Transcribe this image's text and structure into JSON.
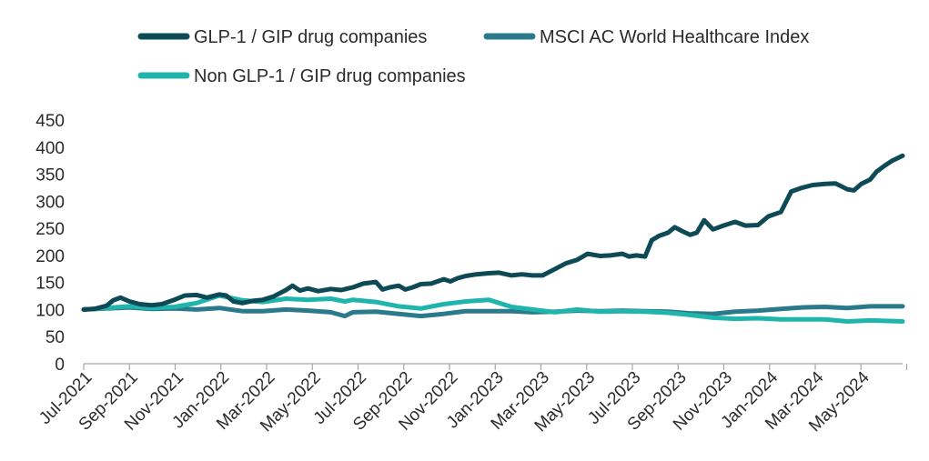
{
  "chart_data": {
    "type": "line",
    "title": "",
    "xlabel": "",
    "ylabel": "",
    "ylim": [
      0,
      450
    ],
    "y_ticks": [
      0,
      50,
      100,
      150,
      200,
      250,
      300,
      350,
      400,
      450
    ],
    "x_range": [
      "2021-07-01",
      "2024-07-15"
    ],
    "x_ticks": [
      "Jul-2021",
      "Sep-2021",
      "Nov-2021",
      "Jan-2022",
      "Mar-2022",
      "May-2022",
      "Jul-2022",
      "Sep-2022",
      "Nov-2022",
      "Jan-2023",
      "Mar-2023",
      "May-2023",
      "Jul-2023",
      "Sep-2023",
      "Nov-2023",
      "Jan-2024",
      "Mar-2024",
      "May-2024"
    ],
    "grid": false,
    "legend_position": "top",
    "series": [
      {
        "name": "GLP-1 / GIP drug companies",
        "color": "#0d4a55",
        "points": [
          [
            "2021-07-01",
            100
          ],
          [
            "2021-07-15",
            101
          ],
          [
            "2021-08-01",
            107
          ],
          [
            "2021-08-10",
            117
          ],
          [
            "2021-08-20",
            122
          ],
          [
            "2021-09-01",
            115
          ],
          [
            "2021-09-15",
            110
          ],
          [
            "2021-10-01",
            108
          ],
          [
            "2021-10-15",
            110
          ],
          [
            "2021-11-01",
            118
          ],
          [
            "2021-11-15",
            126
          ],
          [
            "2021-12-01",
            127
          ],
          [
            "2021-12-15",
            122
          ],
          [
            "2022-01-01",
            128
          ],
          [
            "2022-01-10",
            126
          ],
          [
            "2022-01-20",
            115
          ],
          [
            "2022-02-01",
            112
          ],
          [
            "2022-02-15",
            116
          ],
          [
            "2022-03-01",
            118
          ],
          [
            "2022-03-15",
            124
          ],
          [
            "2022-04-01",
            136
          ],
          [
            "2022-04-10",
            144
          ],
          [
            "2022-04-20",
            135
          ],
          [
            "2022-05-01",
            139
          ],
          [
            "2022-05-15",
            134
          ],
          [
            "2022-06-01",
            138
          ],
          [
            "2022-06-15",
            136
          ],
          [
            "2022-07-01",
            141
          ],
          [
            "2022-07-15",
            148
          ],
          [
            "2022-08-01",
            151
          ],
          [
            "2022-08-10",
            137
          ],
          [
            "2022-08-20",
            141
          ],
          [
            "2022-09-01",
            144
          ],
          [
            "2022-09-10",
            137
          ],
          [
            "2022-09-20",
            141
          ],
          [
            "2022-10-01",
            147
          ],
          [
            "2022-10-15",
            148
          ],
          [
            "2022-11-01",
            156
          ],
          [
            "2022-11-10",
            152
          ],
          [
            "2022-11-20",
            158
          ],
          [
            "2022-12-01",
            162
          ],
          [
            "2022-12-15",
            165
          ],
          [
            "2023-01-01",
            167
          ],
          [
            "2023-01-15",
            168
          ],
          [
            "2023-02-01",
            163
          ],
          [
            "2023-02-15",
            165
          ],
          [
            "2023-03-01",
            163
          ],
          [
            "2023-03-15",
            163
          ],
          [
            "2023-04-01",
            175
          ],
          [
            "2023-04-15",
            185
          ],
          [
            "2023-05-01",
            192
          ],
          [
            "2023-05-15",
            203
          ],
          [
            "2023-06-01",
            199
          ],
          [
            "2023-06-15",
            200
          ],
          [
            "2023-07-01",
            203
          ],
          [
            "2023-07-10",
            198
          ],
          [
            "2023-07-20",
            200
          ],
          [
            "2023-08-01",
            198
          ],
          [
            "2023-08-10",
            228
          ],
          [
            "2023-08-20",
            236
          ],
          [
            "2023-09-01",
            242
          ],
          [
            "2023-09-10",
            252
          ],
          [
            "2023-09-20",
            245
          ],
          [
            "2023-10-01",
            238
          ],
          [
            "2023-10-10",
            242
          ],
          [
            "2023-10-20",
            265
          ],
          [
            "2023-11-01",
            248
          ],
          [
            "2023-11-15",
            255
          ],
          [
            "2023-12-01",
            262
          ],
          [
            "2023-12-15",
            255
          ],
          [
            "2024-01-01",
            256
          ],
          [
            "2024-01-15",
            272
          ],
          [
            "2024-02-01",
            280
          ],
          [
            "2024-02-15",
            318
          ],
          [
            "2024-03-01",
            325
          ],
          [
            "2024-03-15",
            330
          ],
          [
            "2024-04-01",
            332
          ],
          [
            "2024-04-15",
            333
          ],
          [
            "2024-05-01",
            322
          ],
          [
            "2024-05-10",
            320
          ],
          [
            "2024-05-20",
            332
          ],
          [
            "2024-06-01",
            340
          ],
          [
            "2024-06-10",
            355
          ],
          [
            "2024-06-20",
            365
          ],
          [
            "2024-07-01",
            375
          ],
          [
            "2024-07-15",
            384
          ]
        ]
      },
      {
        "name": "MSCI AC World Healthcare Index",
        "color": "#2a7a8c",
        "points": [
          [
            "2021-07-01",
            100
          ],
          [
            "2021-08-01",
            102
          ],
          [
            "2021-09-01",
            104
          ],
          [
            "2021-10-01",
            101
          ],
          [
            "2021-11-01",
            102
          ],
          [
            "2021-12-01",
            100
          ],
          [
            "2022-01-01",
            103
          ],
          [
            "2022-02-01",
            97
          ],
          [
            "2022-03-01",
            97
          ],
          [
            "2022-04-01",
            100
          ],
          [
            "2022-05-01",
            98
          ],
          [
            "2022-06-01",
            95
          ],
          [
            "2022-06-20",
            88
          ],
          [
            "2022-07-01",
            95
          ],
          [
            "2022-08-01",
            96
          ],
          [
            "2022-09-01",
            92
          ],
          [
            "2022-10-01",
            88
          ],
          [
            "2022-11-01",
            92
          ],
          [
            "2022-12-01",
            97
          ],
          [
            "2023-01-01",
            97
          ],
          [
            "2023-02-01",
            97
          ],
          [
            "2023-03-01",
            95
          ],
          [
            "2023-04-01",
            96
          ],
          [
            "2023-05-01",
            98
          ],
          [
            "2023-06-01",
            97
          ],
          [
            "2023-07-01",
            98
          ],
          [
            "2023-08-01",
            97
          ],
          [
            "2023-09-01",
            96
          ],
          [
            "2023-10-01",
            93
          ],
          [
            "2023-11-01",
            92
          ],
          [
            "2023-12-01",
            96
          ],
          [
            "2024-01-01",
            98
          ],
          [
            "2024-02-01",
            101
          ],
          [
            "2024-03-01",
            104
          ],
          [
            "2024-04-01",
            105
          ],
          [
            "2024-05-01",
            103
          ],
          [
            "2024-06-01",
            106
          ],
          [
            "2024-07-15",
            106
          ]
        ]
      },
      {
        "name": "Non GLP-1 / GIP drug companies",
        "color": "#1fb5ad",
        "points": [
          [
            "2021-07-01",
            100
          ],
          [
            "2021-08-01",
            103
          ],
          [
            "2021-09-01",
            106
          ],
          [
            "2021-10-01",
            103
          ],
          [
            "2021-11-01",
            105
          ],
          [
            "2021-12-01",
            112
          ],
          [
            "2022-01-01",
            126
          ],
          [
            "2022-02-01",
            117
          ],
          [
            "2022-03-01",
            114
          ],
          [
            "2022-04-01",
            120
          ],
          [
            "2022-05-01",
            118
          ],
          [
            "2022-06-01",
            120
          ],
          [
            "2022-06-20",
            115
          ],
          [
            "2022-07-01",
            118
          ],
          [
            "2022-08-01",
            114
          ],
          [
            "2022-09-01",
            106
          ],
          [
            "2022-10-01",
            102
          ],
          [
            "2022-11-01",
            110
          ],
          [
            "2022-12-01",
            115
          ],
          [
            "2023-01-01",
            118
          ],
          [
            "2023-02-01",
            105
          ],
          [
            "2023-03-01",
            100
          ],
          [
            "2023-04-01",
            95
          ],
          [
            "2023-05-01",
            100
          ],
          [
            "2023-06-01",
            96
          ],
          [
            "2023-07-01",
            97
          ],
          [
            "2023-08-01",
            96
          ],
          [
            "2023-09-01",
            94
          ],
          [
            "2023-10-01",
            90
          ],
          [
            "2023-11-01",
            85
          ],
          [
            "2023-12-01",
            83
          ],
          [
            "2024-01-01",
            84
          ],
          [
            "2024-02-01",
            82
          ],
          [
            "2024-03-01",
            82
          ],
          [
            "2024-04-01",
            82
          ],
          [
            "2024-05-01",
            78
          ],
          [
            "2024-06-01",
            80
          ],
          [
            "2024-07-15",
            78
          ]
        ]
      }
    ]
  }
}
